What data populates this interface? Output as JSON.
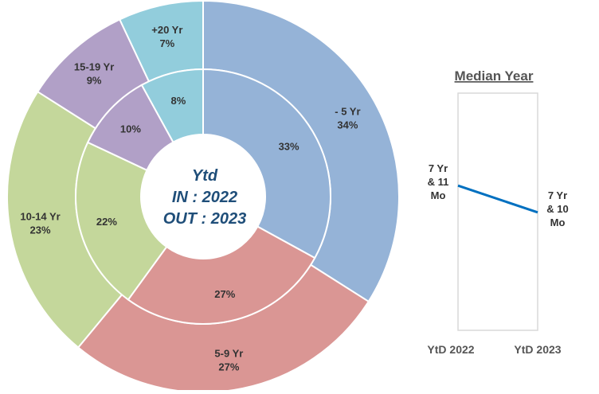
{
  "chart_data": [
    {
      "type": "pie",
      "subtype": "nested-donut",
      "center_text": [
        "Ytd",
        "IN : 2022",
        "OUT : 2023"
      ],
      "colors": {
        "-5": "#95b3d7",
        "5-9": "#da9694",
        "10-14": "#c4d79b",
        "15-19": "#b1a0c7",
        "20+": "#92cddc"
      },
      "inner_ring": {
        "name": "IN : 2022",
        "slices": [
          {
            "key": "-5",
            "value": 33,
            "label": "33%"
          },
          {
            "key": "5-9",
            "value": 27,
            "label": "27%"
          },
          {
            "key": "10-14",
            "value": 22,
            "label": "22%"
          },
          {
            "key": "15-19",
            "value": 10,
            "label": "10%"
          },
          {
            "key": "20+",
            "value": 8,
            "label": "8%"
          }
        ]
      },
      "outer_ring": {
        "name": "OUT : 2023",
        "slices": [
          {
            "key": "-5",
            "value": 34,
            "category": "- 5 Yr",
            "label": "34%"
          },
          {
            "key": "5-9",
            "value": 27,
            "category": "5-9 Yr",
            "label": "27%"
          },
          {
            "key": "10-14",
            "value": 23,
            "category": "10-14 Yr",
            "label": "23%"
          },
          {
            "key": "15-19",
            "value": 9,
            "category": "15-19 Yr",
            "label": "9%"
          },
          {
            "key": "20+",
            "value": 7,
            "category": "+20 Yr",
            "label": "7%"
          }
        ]
      }
    },
    {
      "type": "line",
      "title": "Median Year",
      "categories": [
        "YtD 2022",
        "YtD 2023"
      ],
      "series": [
        {
          "values": [
            7.917,
            7.833
          ],
          "labels": [
            [
              "7 Yr",
              "& 11",
              "Mo"
            ],
            [
              "7 Yr",
              "& 10",
              "Mo"
            ]
          ]
        }
      ],
      "line_color": "#0070c0"
    }
  ]
}
